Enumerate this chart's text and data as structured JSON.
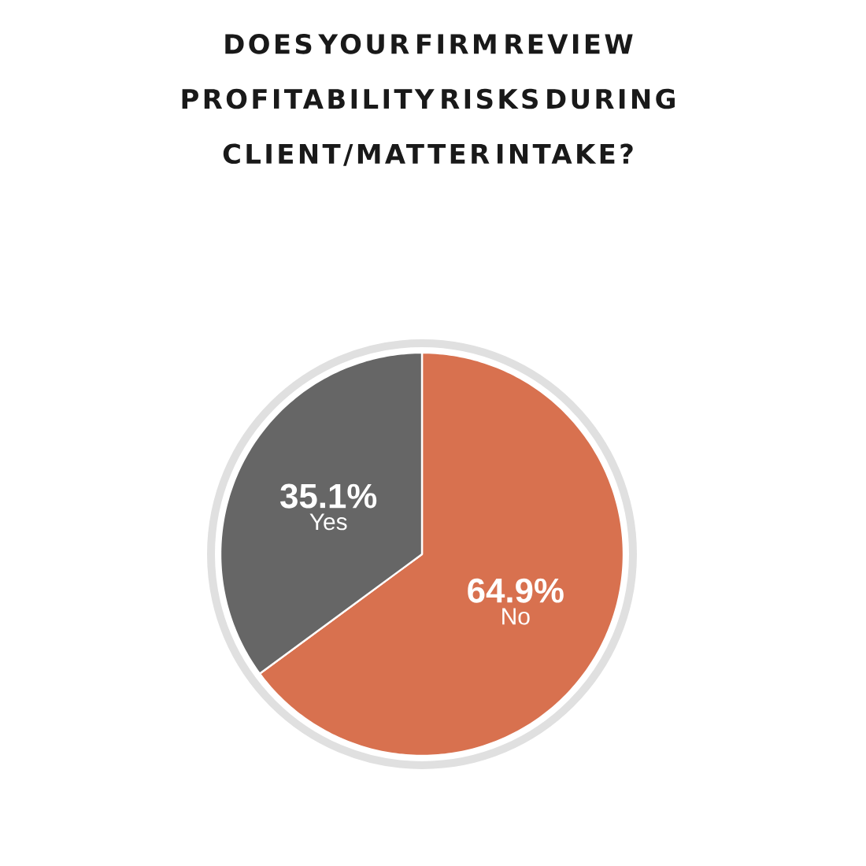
{
  "chart_data": {
    "type": "pie",
    "title": "DOES YOUR FIRM REVIEW PROFITABILITY RISKS DURING CLIENT/MATTER INTAKE?",
    "categories": [
      "No",
      "Yes"
    ],
    "values": [
      64.9,
      35.1
    ],
    "value_labels": [
      "64.9%",
      "35.1%"
    ],
    "colors": [
      "#d8714f",
      "#666666"
    ]
  }
}
